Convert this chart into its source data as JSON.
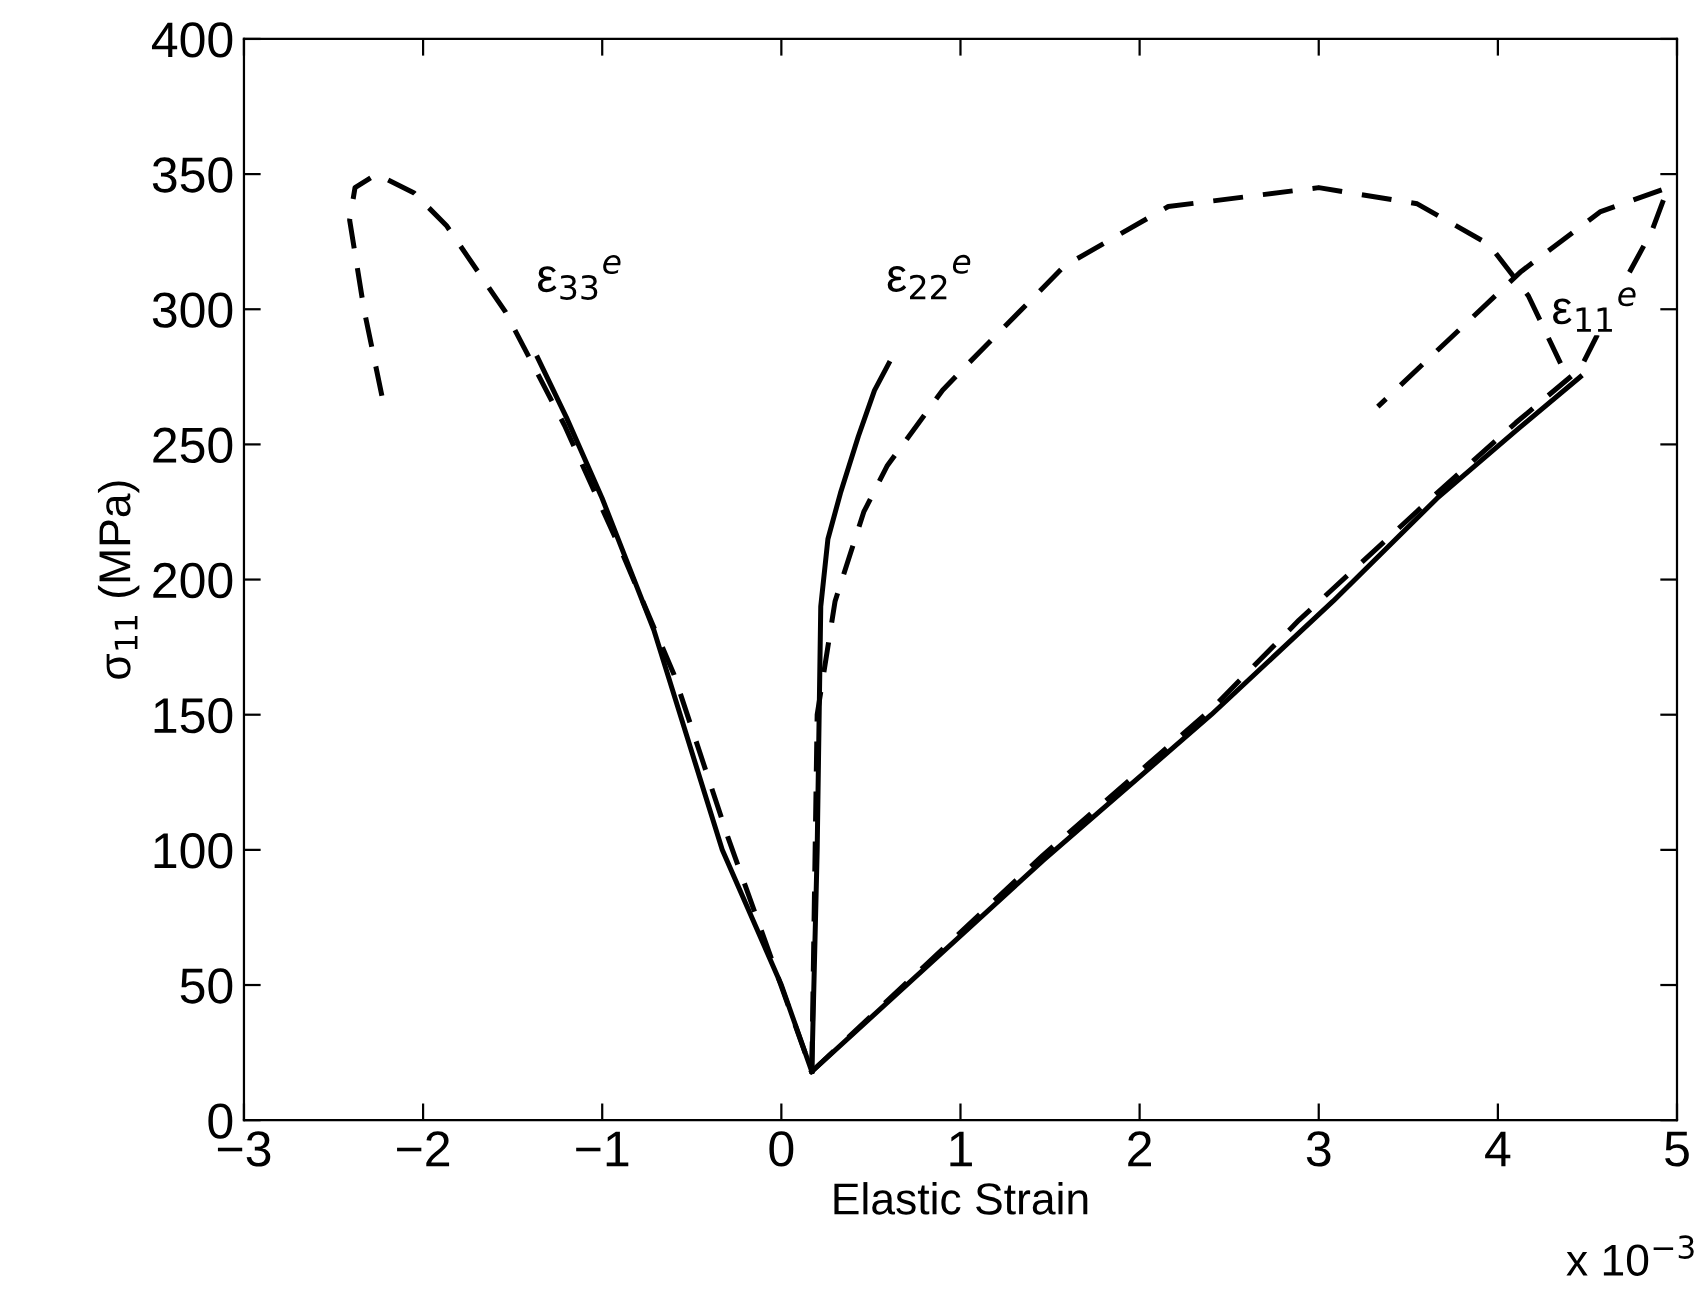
{
  "chart_data": {
    "type": "line",
    "xlabel": "Elastic Strain",
    "ylabel": "σ$_{11}$ (MPa)",
    "xlim": [
      -3,
      5
    ],
    "xticks": [
      -3,
      -2,
      -1,
      0,
      1,
      2,
      3,
      4,
      5
    ],
    "ylim": [
      0,
      400
    ],
    "yticks": [
      0,
      50,
      100,
      150,
      200,
      250,
      300,
      350,
      400
    ],
    "grid": false,
    "legend": false,
    "marker": "none",
    "series": [
      {
        "color": "#000000",
        "line_style": "solid",
        "x": [
          0.17,
          0.0,
          -0.33,
          -0.71,
          -1.0,
          -1.2,
          -1.36
        ],
        "values": [
          18,
          50,
          100,
          181,
          230,
          260,
          282
        ]
      },
      {
        "color": "#000000",
        "line_style": "dashed",
        "x": [
          -2.23,
          -2.33,
          -2.41,
          -2.38,
          -2.26,
          -2.05,
          -1.87,
          -1.54,
          -1.21,
          -0.89,
          -0.6,
          -0.3,
          0.17
        ],
        "values": [
          268,
          300,
          333,
          345,
          350,
          343,
          331,
          299,
          257,
          210,
          165,
          105,
          18
        ]
      },
      {
        "color": "#000000",
        "line_style": "solid",
        "x": [
          0.17,
          0.2,
          0.22,
          0.26,
          0.33,
          0.43,
          0.52,
          0.6
        ],
        "values": [
          18,
          100,
          190,
          215,
          232,
          253,
          270,
          280
        ]
      },
      {
        "color": "#000000",
        "line_style": "dashed",
        "x": [
          0.17,
          0.2,
          0.3,
          0.46,
          0.59,
          0.9,
          1.03,
          1.58,
          2.16,
          3.0,
          3.55,
          3.95,
          4.17,
          4.35
        ],
        "values": [
          18,
          150,
          192,
          225,
          242,
          270,
          279,
          316,
          338,
          345,
          339,
          324,
          305,
          280
        ]
      },
      {
        "color": "#000000",
        "line_style": "solid",
        "x": [
          0.17,
          1.46,
          2.4,
          3.08,
          3.66,
          4.1,
          4.46
        ],
        "values": [
          18,
          96,
          150,
          192,
          230,
          255,
          275
        ]
      },
      {
        "color": "#000000",
        "line_style": "dashed",
        "x": [
          0.17,
          1.46,
          2.4,
          2.89,
          3.66,
          4.1,
          4.46,
          4.68,
          4.86,
          4.95,
          4.57,
          4.13,
          3.33
        ],
        "values": [
          18,
          98,
          152,
          185,
          232,
          258,
          278,
          307,
          329,
          345,
          336,
          314,
          264
        ]
      }
    ],
    "annotations": [
      "ε$_{33}$$^{e}$",
      "ε$_{22}$$^{e}$",
      "ε$_{11}$$^{e}$",
      "x 10$^{−3}$"
    ]
  }
}
